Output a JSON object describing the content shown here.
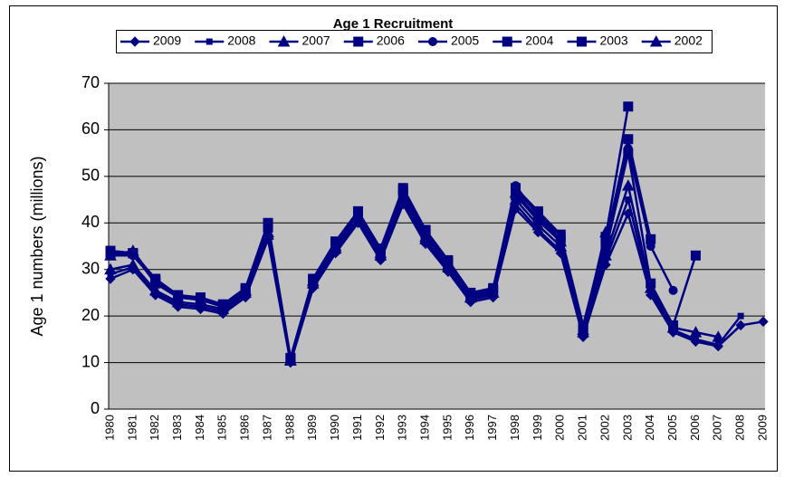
{
  "chart_data": {
    "type": "line",
    "title": "Age 1 Recruitment",
    "y_label": "Age 1 numbers (millions)",
    "categories": [
      "1980",
      "1981",
      "1982",
      "1983",
      "1984",
      "1985",
      "1986",
      "1987",
      "1988",
      "1989",
      "1990",
      "1991",
      "1992",
      "1993",
      "1994",
      "1995",
      "1996",
      "1997",
      "1998",
      "1999",
      "2000",
      "2001",
      "2002",
      "2003",
      "2004",
      "2005",
      "2006",
      "2007",
      "2008",
      "2009"
    ],
    "ylim": [
      0,
      70
    ],
    "yticks": [
      0,
      10,
      20,
      30,
      40,
      50,
      60,
      70
    ],
    "grid": true,
    "legend": "top",
    "series": [
      {
        "name": "2009",
        "color": "#000080",
        "marker": "diamond",
        "values": [
          28,
          30,
          24.5,
          22,
          21.5,
          20.5,
          24,
          36.5,
          10,
          26,
          33.5,
          40,
          32,
          44,
          35.5,
          29.5,
          23,
          24,
          43,
          38,
          33.5,
          15.5,
          31,
          42,
          24.5,
          16.5,
          14.5,
          13.5,
          18,
          18.8
        ]
      },
      {
        "name": "2008",
        "color": "#000080",
        "marker": "small-square",
        "values": [
          29,
          30.5,
          25,
          22.5,
          22,
          21,
          24.5,
          37,
          10.2,
          26.5,
          34,
          40.5,
          32.5,
          44.5,
          36,
          30,
          23.5,
          24.5,
          44,
          38.5,
          34,
          16,
          32,
          45,
          25,
          17,
          15,
          13.8,
          20,
          null
        ]
      },
      {
        "name": "2007",
        "color": "#000080",
        "marker": "triangle",
        "values": [
          30,
          31,
          25.5,
          23,
          22.5,
          21.5,
          25,
          37.5,
          10.4,
          27,
          34.5,
          41,
          33,
          45,
          36.5,
          30.5,
          24,
          25,
          45,
          39.5,
          35,
          16.5,
          33,
          48,
          26,
          17.5,
          16.5,
          15.5,
          null,
          null
        ]
      },
      {
        "name": "2006",
        "color": "#000080",
        "marker": "square",
        "values": [
          34,
          33.5,
          27,
          24,
          23.5,
          22,
          25.5,
          39,
          10.6,
          27.5,
          35.5,
          42,
          33.5,
          46,
          37.5,
          31,
          24.5,
          25.5,
          46,
          40.5,
          36,
          17,
          34,
          55,
          27,
          18,
          33,
          null,
          null,
          null
        ]
      },
      {
        "name": "2005",
        "color": "#000080",
        "marker": "circle",
        "values": [
          33,
          33,
          27.5,
          24,
          23.5,
          22,
          25.5,
          39,
          10.8,
          27.5,
          35.5,
          42,
          34,
          46.5,
          37.5,
          31.5,
          24.5,
          25.5,
          48,
          41.5,
          36.5,
          17,
          35,
          56,
          35,
          25.5,
          null,
          null,
          null,
          null
        ]
      },
      {
        "name": "2004",
        "color": "#000080",
        "marker": "square",
        "values": [
          33.5,
          33.5,
          27.5,
          24.5,
          23.5,
          22.5,
          25.5,
          39.5,
          11,
          28,
          36,
          42.5,
          34,
          47,
          38,
          31.5,
          24.5,
          25.5,
          47,
          42,
          37,
          17.5,
          36,
          58,
          36.5,
          null,
          null,
          null,
          null,
          null
        ]
      },
      {
        "name": "2003",
        "color": "#000080",
        "marker": "square",
        "values": [
          34,
          33.5,
          28,
          24.5,
          24,
          22.5,
          26,
          40,
          11,
          28,
          36,
          42.5,
          34.5,
          47.5,
          38.5,
          32,
          25,
          26,
          47.5,
          42.5,
          37.5,
          18,
          37,
          65,
          null,
          null,
          null,
          null,
          null,
          null
        ]
      },
      {
        "name": "2002",
        "color": "#000080",
        "marker": "triangle",
        "values": [
          33,
          34,
          27.5,
          24,
          23.5,
          22,
          25.5,
          38,
          10.5,
          27.5,
          35,
          41.5,
          33.5,
          45.5,
          37,
          31,
          24,
          25,
          46.5,
          41,
          36,
          17,
          38,
          null,
          null,
          null,
          null,
          null,
          null,
          null
        ]
      }
    ]
  }
}
